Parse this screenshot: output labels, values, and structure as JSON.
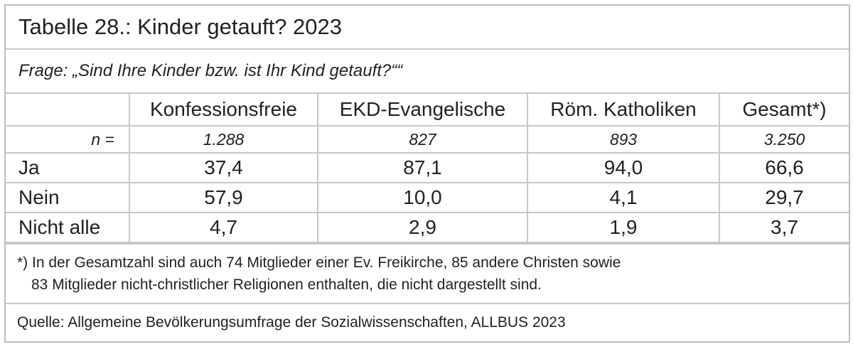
{
  "title": "Tabelle 28.: Kinder getauft? 2023",
  "question": "Frage: „Sind Ihre Kinder bzw. ist Ihr Kind getauft?““",
  "table": {
    "header": [
      "Konfessionsfreie",
      "EKD-Evangelische",
      "Röm. Katholiken",
      "Gesamt*)"
    ],
    "n_row": [
      "n =",
      "1.288",
      "827",
      "893",
      "3.250"
    ],
    "rows": [
      [
        "Ja",
        "37,4",
        "87,1",
        "94,0",
        "66,6"
      ],
      [
        "Nein",
        "57,9",
        "10,0",
        "4,1",
        "29,7"
      ],
      [
        "Nicht alle",
        "4,7",
        "2,9",
        "1,9",
        "3,7"
      ]
    ]
  },
  "footnote": [
    "*) In der Gesamtzahl sind auch 74 Mitglieder einer Ev. Freikirche, 85 andere Christen sowie",
    "83 Mitglieder nicht-christlicher Religionen enthalten, die nicht dargestellt sind."
  ],
  "source": "Quelle: Allgemeine Bevölkerungsumfrage der Sozialwissenschaften, ALLBUS 2023"
}
